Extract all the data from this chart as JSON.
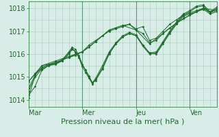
{
  "background_color": "#d8ede8",
  "grid_color": "#aaccbb",
  "line_color": "#1a6b2a",
  "marker_color": "#1a6b2a",
  "ylabel_ticks": [
    1014,
    1015,
    1016,
    1017,
    1018
  ],
  "ylim": [
    1013.7,
    1018.3
  ],
  "xlabel": "Pression niveau de la mer( hPa )",
  "xlabel_fontsize": 8,
  "tick_fontsize": 7,
  "day_labels": [
    "Mar",
    "Mer",
    "Jeu",
    "Ven"
  ],
  "day_positions": [
    0,
    48,
    96,
    144
  ],
  "total_hours": 168,
  "series": [
    [
      0,
      1014.1,
      6,
      1015.1,
      12,
      1015.5,
      18,
      1015.55,
      24,
      1015.6,
      30,
      1015.75,
      36,
      1015.85,
      42,
      1016.0,
      48,
      1016.1,
      54,
      1016.4,
      60,
      1016.6,
      66,
      1016.8,
      72,
      1017.0,
      78,
      1017.1,
      84,
      1017.2,
      90,
      1017.3,
      96,
      1017.1,
      102,
      1017.2,
      108,
      1016.6,
      114,
      1016.7,
      120,
      1017.0,
      126,
      1017.3,
      132,
      1017.5,
      138,
      1017.7,
      144,
      1017.8,
      150,
      1017.9,
      156,
      1018.0,
      162,
      1017.8,
      168,
      1017.9
    ],
    [
      0,
      1014.8,
      6,
      1015.15,
      12,
      1015.4,
      18,
      1015.55,
      24,
      1015.6,
      30,
      1015.75,
      36,
      1015.85,
      42,
      1015.95,
      48,
      1016.1,
      54,
      1016.3,
      60,
      1016.55,
      66,
      1016.8,
      72,
      1017.05,
      78,
      1017.15,
      84,
      1017.25,
      90,
      1017.3,
      96,
      1017.05,
      102,
      1016.9,
      108,
      1016.5,
      114,
      1016.6,
      120,
      1016.9,
      126,
      1017.15,
      132,
      1017.35,
      138,
      1017.55,
      144,
      1017.7,
      150,
      1017.85,
      156,
      1018.0,
      162,
      1017.85,
      168,
      1017.95
    ],
    [
      0,
      1014.8,
      12,
      1015.5,
      24,
      1015.7,
      36,
      1015.9,
      48,
      1016.1,
      60,
      1016.55,
      72,
      1017.05,
      84,
      1017.25,
      96,
      1017.05,
      108,
      1016.45,
      120,
      1016.9,
      132,
      1017.35,
      144,
      1017.7,
      156,
      1018.0,
      168,
      1017.9
    ],
    [
      0,
      1014.2,
      6,
      1014.6,
      12,
      1015.3,
      18,
      1015.5,
      24,
      1015.55,
      30,
      1015.7,
      36,
      1016.0,
      39,
      1016.2,
      42,
      1016.1,
      45,
      1015.85,
      48,
      1015.55,
      51,
      1015.3,
      54,
      1015.05,
      57,
      1014.75,
      60,
      1014.85,
      66,
      1015.35,
      72,
      1016.0,
      78,
      1016.45,
      84,
      1016.75,
      90,
      1016.9,
      96,
      1016.8,
      102,
      1016.4,
      108,
      1016.05,
      114,
      1016.0,
      120,
      1016.45,
      126,
      1016.9,
      132,
      1017.3,
      138,
      1017.65,
      144,
      1017.75,
      150,
      1017.85,
      156,
      1017.95,
      162,
      1017.75,
      168,
      1017.85
    ],
    [
      0,
      1014.4,
      6,
      1015.0,
      12,
      1015.35,
      18,
      1015.5,
      24,
      1015.6,
      30,
      1015.7,
      36,
      1016.05,
      39,
      1016.25,
      42,
      1016.1,
      45,
      1015.85,
      48,
      1015.45,
      51,
      1015.2,
      54,
      1014.95,
      57,
      1014.7,
      60,
      1014.9,
      66,
      1015.4,
      72,
      1016.05,
      78,
      1016.45,
      84,
      1016.75,
      90,
      1016.9,
      96,
      1016.8,
      102,
      1016.35,
      108,
      1016.0,
      114,
      1016.05,
      120,
      1016.5,
      126,
      1016.95,
      132,
      1017.35,
      138,
      1017.7,
      144,
      1017.85,
      150,
      1018.05,
      156,
      1018.1,
      162,
      1017.8,
      168,
      1018.0
    ],
    [
      0,
      1014.5,
      6,
      1015.1,
      12,
      1015.4,
      18,
      1015.55,
      24,
      1015.65,
      30,
      1015.75,
      36,
      1016.1,
      39,
      1016.3,
      42,
      1016.2,
      45,
      1015.95,
      48,
      1015.55,
      51,
      1015.3,
      54,
      1015.0,
      57,
      1014.75,
      60,
      1014.95,
      66,
      1015.5,
      72,
      1016.1,
      78,
      1016.5,
      84,
      1016.8,
      90,
      1016.95,
      96,
      1016.85,
      102,
      1016.4,
      108,
      1016.05,
      114,
      1016.1,
      120,
      1016.55,
      126,
      1017.0,
      132,
      1017.4,
      138,
      1017.75,
      144,
      1017.9,
      150,
      1018.1,
      156,
      1018.15,
      162,
      1017.85,
      168,
      1018.05
    ]
  ]
}
